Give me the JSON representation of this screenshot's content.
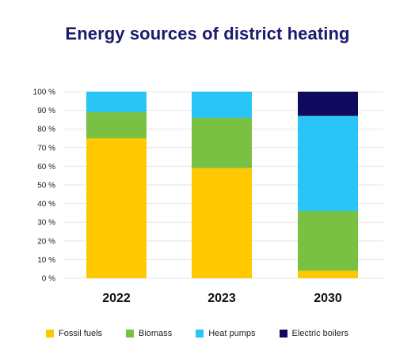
{
  "chart_data": {
    "type": "bar",
    "stacked": true,
    "title": "Energy sources of district heating",
    "xlabel": "",
    "ylabel": "",
    "categories": [
      "2022",
      "2023",
      "2030"
    ],
    "ylim": [
      0,
      100
    ],
    "yticks": [
      0,
      10,
      20,
      30,
      40,
      50,
      60,
      70,
      80,
      90,
      100
    ],
    "ytick_labels": [
      "0 %",
      "10 %",
      "20 %",
      "30 %",
      "40 %",
      "50 %",
      "60 %",
      "70 %",
      "80 %",
      "90 %",
      "100 %"
    ],
    "grid": true,
    "legend_position": "bottom",
    "series": [
      {
        "name": "Fossil fuels",
        "color": "#ffc800",
        "values": [
          75,
          59,
          4
        ]
      },
      {
        "name": "Biomass",
        "color": "#7ac143",
        "values": [
          14,
          27,
          32
        ]
      },
      {
        "name": "Heat pumps",
        "color": "#29c5f6",
        "values": [
          11,
          14,
          51
        ]
      },
      {
        "name": "Electric boilers",
        "color": "#0f0a5e",
        "values": [
          0,
          0,
          13
        ]
      }
    ]
  }
}
